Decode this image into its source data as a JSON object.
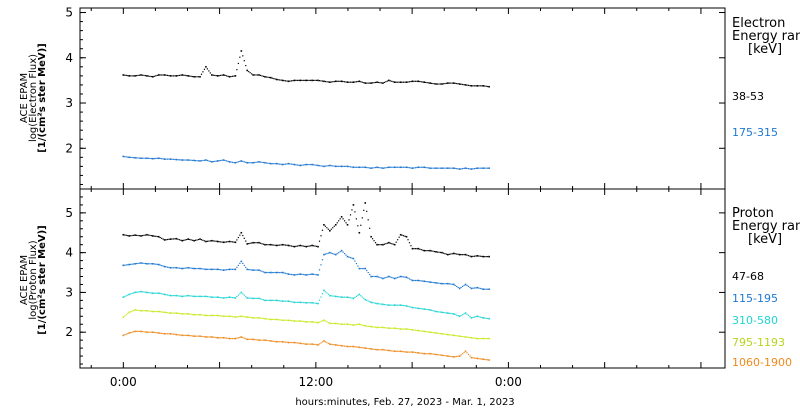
{
  "chart_data": [
    {
      "type": "scatter",
      "panel": "electron",
      "ylabel": [
        "ACE EPAM",
        "log(Electron Flux)",
        "[1/(cm²s ster MeV)]"
      ],
      "ylim": [
        1.1,
        5.1
      ],
      "yticks": [
        2,
        3,
        4,
        5
      ],
      "legend": {
        "title": [
          "Electron",
          "Energy ranges",
          "[keV]"
        ],
        "placement": "right"
      },
      "series": [
        {
          "name": "38-53",
          "color": "#000000",
          "values": [
            3.62,
            3.6,
            3.6,
            3.62,
            3.6,
            3.58,
            3.62,
            3.62,
            3.6,
            3.6,
            3.62,
            3.6,
            3.58,
            3.58,
            3.8,
            3.62,
            3.6,
            3.62,
            3.58,
            3.6,
            4.15,
            3.72,
            3.62,
            3.62,
            3.58,
            3.56,
            3.52,
            3.5,
            3.48,
            3.5,
            3.5,
            3.5,
            3.5,
            3.5,
            3.48,
            3.46,
            3.48,
            3.48,
            3.46,
            3.46,
            3.48,
            3.44,
            3.44,
            3.46,
            3.44,
            3.5,
            3.46,
            3.46,
            3.46,
            3.48,
            3.48,
            3.46,
            3.44,
            3.42,
            3.42,
            3.44,
            3.44,
            3.42,
            3.4,
            3.38,
            3.38,
            3.38,
            3.36
          ]
        },
        {
          "name": "175-315",
          "color": "#1f77d0",
          "values": [
            1.82,
            1.8,
            1.79,
            1.78,
            1.78,
            1.77,
            1.78,
            1.76,
            1.76,
            1.75,
            1.74,
            1.74,
            1.73,
            1.72,
            1.74,
            1.7,
            1.72,
            1.74,
            1.7,
            1.68,
            1.72,
            1.68,
            1.68,
            1.7,
            1.68,
            1.66,
            1.66,
            1.64,
            1.66,
            1.64,
            1.62,
            1.64,
            1.64,
            1.62,
            1.6,
            1.62,
            1.6,
            1.6,
            1.6,
            1.58,
            1.58,
            1.58,
            1.56,
            1.58,
            1.56,
            1.58,
            1.58,
            1.58,
            1.58,
            1.56,
            1.58,
            1.58,
            1.56,
            1.56,
            1.56,
            1.56,
            1.56,
            1.54,
            1.56,
            1.54,
            1.56,
            1.56,
            1.56
          ]
        }
      ]
    },
    {
      "type": "scatter",
      "panel": "proton",
      "ylabel": [
        "ACE EPAM",
        "log(Proton Flux)",
        "[1/(cm²s ster MeV)]"
      ],
      "ylim": [
        1.1,
        5.6
      ],
      "yticks": [
        2,
        3,
        4,
        5
      ],
      "legend": {
        "title": [
          "Proton",
          "Energy ranges",
          "[keV]"
        ],
        "placement": "right"
      },
      "series": [
        {
          "name": "47-68",
          "color": "#000000",
          "values": [
            4.45,
            4.42,
            4.44,
            4.42,
            4.45,
            4.42,
            4.4,
            4.32,
            4.34,
            4.35,
            4.3,
            4.34,
            4.3,
            4.34,
            4.28,
            4.3,
            4.28,
            4.26,
            4.28,
            4.26,
            4.5,
            4.22,
            4.25,
            4.25,
            4.2,
            4.2,
            4.18,
            4.2,
            4.18,
            4.15,
            4.18,
            4.15,
            4.18,
            4.15,
            4.7,
            4.55,
            4.7,
            4.9,
            4.7,
            5.2,
            4.5,
            5.25,
            4.4,
            4.2,
            4.2,
            4.25,
            4.2,
            4.45,
            4.4,
            4.1,
            4.1,
            4.05,
            4.05,
            4.02,
            4.0,
            3.95,
            3.98,
            3.95,
            3.95,
            3.9,
            3.92,
            3.9,
            3.9
          ]
        },
        {
          "name": "115-195",
          "color": "#1f77d0",
          "values": [
            3.68,
            3.7,
            3.72,
            3.74,
            3.72,
            3.72,
            3.7,
            3.65,
            3.62,
            3.62,
            3.6,
            3.62,
            3.6,
            3.6,
            3.58,
            3.58,
            3.58,
            3.56,
            3.58,
            3.58,
            3.78,
            3.58,
            3.56,
            3.56,
            3.5,
            3.5,
            3.5,
            3.5,
            3.46,
            3.44,
            3.46,
            3.44,
            3.46,
            3.44,
            3.95,
            4.0,
            3.95,
            4.05,
            3.9,
            3.85,
            3.6,
            3.6,
            3.4,
            3.4,
            3.35,
            3.4,
            3.35,
            3.4,
            3.38,
            3.3,
            3.3,
            3.28,
            3.26,
            3.24,
            3.22,
            3.22,
            3.2,
            3.1,
            3.2,
            3.1,
            3.12,
            3.08,
            3.08
          ]
        },
        {
          "name": "310-580",
          "color": "#22d3d3",
          "values": [
            2.88,
            2.95,
            3.0,
            3.02,
            3.0,
            2.98,
            2.98,
            2.95,
            2.92,
            2.92,
            2.9,
            2.92,
            2.9,
            2.9,
            2.9,
            2.88,
            2.88,
            2.86,
            2.88,
            2.86,
            3.0,
            2.86,
            2.85,
            2.85,
            2.8,
            2.8,
            2.8,
            2.78,
            2.78,
            2.75,
            2.75,
            2.74,
            2.74,
            2.72,
            3.05,
            2.92,
            2.9,
            2.88,
            2.88,
            2.85,
            2.95,
            2.82,
            2.75,
            2.72,
            2.7,
            2.68,
            2.68,
            2.68,
            2.66,
            2.62,
            2.6,
            2.58,
            2.56,
            2.52,
            2.5,
            2.48,
            2.46,
            2.4,
            2.48,
            2.36,
            2.4,
            2.36,
            2.34
          ]
        },
        {
          "name": "795-1193",
          "color": "#c8e81e",
          "values": [
            2.38,
            2.5,
            2.56,
            2.54,
            2.54,
            2.52,
            2.52,
            2.5,
            2.48,
            2.48,
            2.46,
            2.46,
            2.44,
            2.44,
            2.42,
            2.42,
            2.42,
            2.4,
            2.4,
            2.38,
            2.4,
            2.38,
            2.36,
            2.36,
            2.34,
            2.32,
            2.32,
            2.3,
            2.3,
            2.28,
            2.28,
            2.26,
            2.26,
            2.24,
            2.3,
            2.22,
            2.22,
            2.2,
            2.2,
            2.18,
            2.2,
            2.16,
            2.14,
            2.12,
            2.12,
            2.1,
            2.1,
            2.08,
            2.08,
            2.06,
            2.04,
            2.02,
            2.0,
            1.98,
            1.96,
            1.94,
            1.92,
            1.9,
            1.88,
            1.86,
            1.84,
            1.84,
            1.84
          ]
        },
        {
          "name": "1060-1900",
          "color": "#ee8a1e",
          "values": [
            1.92,
            1.98,
            2.02,
            2.02,
            2.0,
            2.0,
            1.98,
            1.96,
            1.96,
            1.94,
            1.92,
            1.92,
            1.9,
            1.9,
            1.88,
            1.88,
            1.86,
            1.86,
            1.84,
            1.84,
            1.88,
            1.82,
            1.82,
            1.8,
            1.8,
            1.78,
            1.76,
            1.76,
            1.74,
            1.74,
            1.72,
            1.7,
            1.7,
            1.68,
            1.78,
            1.7,
            1.68,
            1.66,
            1.64,
            1.64,
            1.62,
            1.6,
            1.58,
            1.56,
            1.56,
            1.54,
            1.52,
            1.52,
            1.5,
            1.5,
            1.48,
            1.46,
            1.46,
            1.44,
            1.42,
            1.4,
            1.38,
            1.4,
            1.52,
            1.36,
            1.34,
            1.32,
            1.3
          ]
        }
      ]
    }
  ],
  "x_axis": {
    "title": "hours:minutes, Feb. 27, 2023 - Mar. 1, 2023",
    "tick_labels": [
      "0:00",
      "12:00",
      "0:00"
    ],
    "range_hours": [
      -2.7,
      37.5
    ],
    "tick_hours": [
      0,
      12,
      24
    ],
    "data_start_hour": 0,
    "data_end_hour": 22.8
  }
}
